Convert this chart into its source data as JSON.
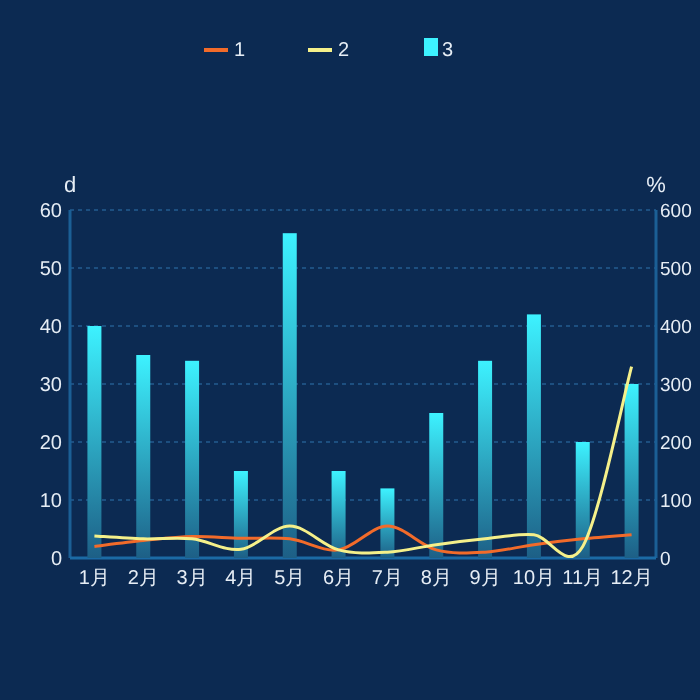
{
  "chart_data": {
    "type": "bar",
    "categories": [
      "1月",
      "2月",
      "3月",
      "4月",
      "5月",
      "6月",
      "7月",
      "8月",
      "9月",
      "10月",
      "11月",
      "12月"
    ],
    "series": [
      {
        "name": "1",
        "type": "line",
        "axis": "y2",
        "color": "#f26b2a",
        "values": [
          20,
          30,
          37,
          34,
          33,
          14,
          55,
          14,
          10,
          23,
          33,
          40
        ]
      },
      {
        "name": "2",
        "type": "line",
        "axis": "y2",
        "color": "#f5f08a",
        "values": [
          38,
          33,
          33,
          15,
          55,
          14,
          10,
          23,
          33,
          40,
          20,
          330
        ]
      },
      {
        "name": "3",
        "color": "#3df2ff",
        "values": [
          40,
          35,
          34,
          15,
          56,
          15,
          12,
          25,
          34,
          42,
          20,
          30
        ]
      }
    ],
    "ylabel": "d",
    "y2label": "%",
    "ylim": [
      0,
      60
    ],
    "yticks": [
      0,
      10,
      20,
      30,
      40,
      50,
      60
    ],
    "y2lim": [
      0,
      600
    ],
    "y2ticks": [
      0,
      100,
      200,
      300,
      400,
      500,
      600
    ],
    "grid": "y",
    "legend": "top"
  }
}
